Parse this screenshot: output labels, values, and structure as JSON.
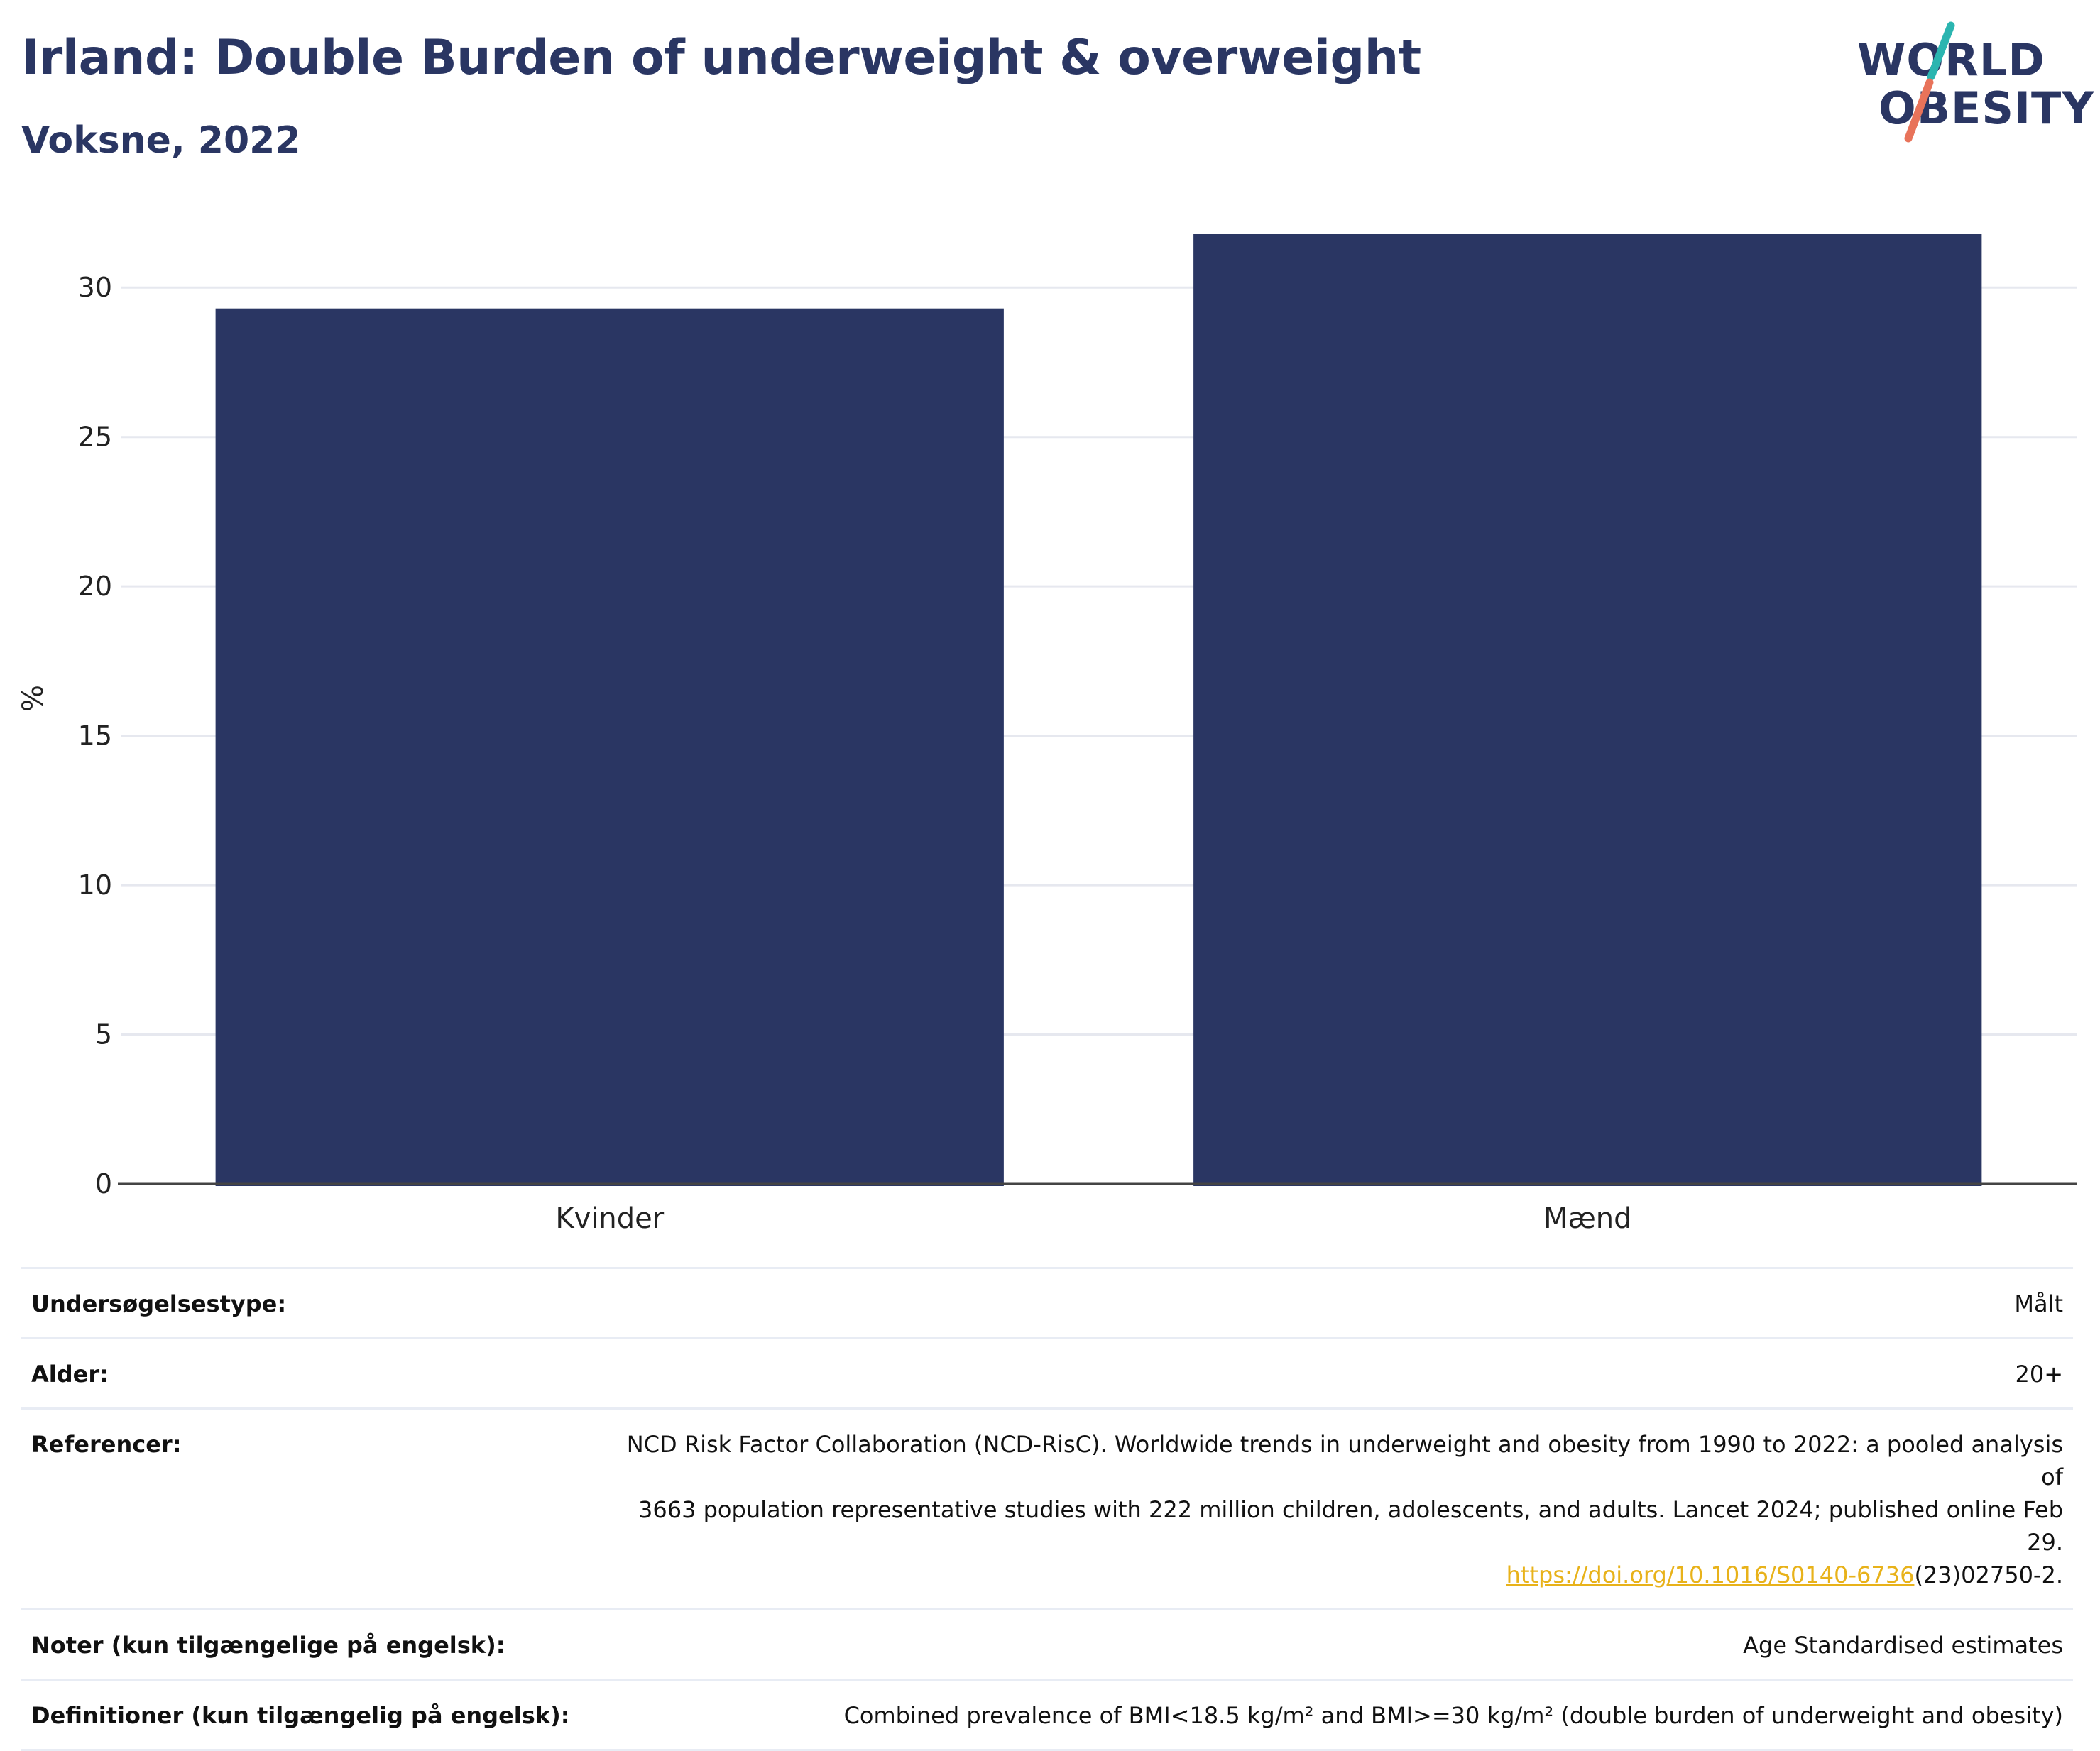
{
  "title": "Irland: Double Burden of underweight & overweight",
  "subtitle": "Voksne, 2022",
  "logo": {
    "line1": "WORLD",
    "line2": "OBESITY",
    "accent_teal": "#2bb5b0",
    "accent_coral": "#e8735a"
  },
  "colors": {
    "bar": "#2a3663",
    "title": "#2a3663",
    "grid": "#e6e8ef",
    "link": "#e8b21a"
  },
  "chart_data": {
    "type": "bar",
    "categories": [
      "Kvinder",
      "Mænd"
    ],
    "values": [
      29.3,
      31.8
    ],
    "ylabel": "%",
    "ylim": [
      0,
      32.5
    ],
    "yticks": [
      0,
      5,
      10,
      15,
      20,
      25,
      30
    ],
    "grid": true
  },
  "info": [
    {
      "key": "Undersøgelsestype:",
      "value": "Målt"
    },
    {
      "key": "Alder:",
      "value": "20+"
    },
    {
      "key": "Referencer:",
      "value_line1": "NCD Risk Factor Collaboration (NCD-RisC). Worldwide trends in underweight and obesity from 1990 to 2022: a pooled analysis of",
      "value_line2": "3663 population representative studies with 222 million children, adolescents, and adults. Lancet 2024; published online Feb 29.",
      "link_text": "https://doi.org/10.1016/S0140-6736",
      "link_suffix": "(23)02750-2."
    },
    {
      "key": "Noter (kun tilgængelige på engelsk):",
      "value": "Age Standardised estimates"
    },
    {
      "key": "Definitioner (kun tilgængelig på engelsk):",
      "value": "Combined prevalence of BMI<18.5 kg/m² and BMI>=30 kg/m² (double burden of underweight and obesity)"
    }
  ]
}
